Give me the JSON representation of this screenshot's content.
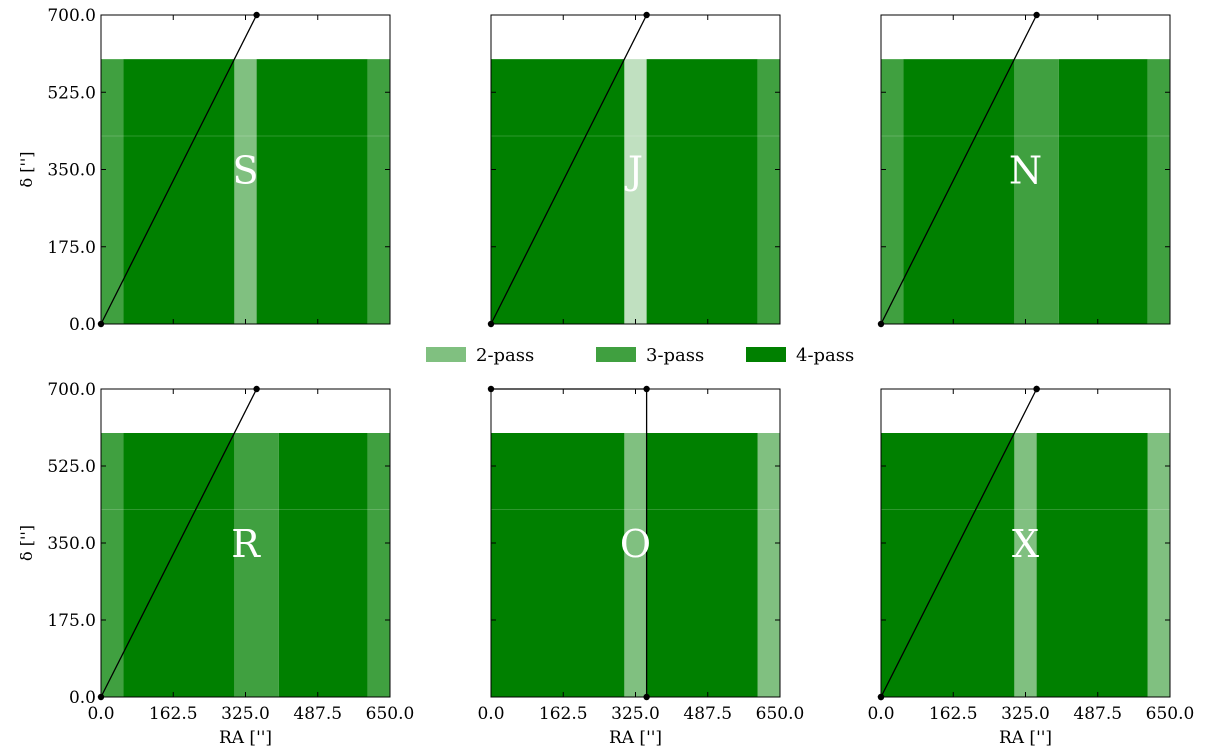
{
  "colors": {
    "pass2": "#80c080",
    "pass3": "#40a040",
    "pass4": "#008000",
    "pass1": "#c0e0c0",
    "axis": "#000000",
    "label": "#ffffff"
  },
  "legend": {
    "placement": "top-center",
    "items": [
      {
        "label": "2-pass",
        "color": "#80c080"
      },
      {
        "label": "3-pass",
        "color": "#40a040"
      },
      {
        "label": "4-pass",
        "color": "#008000"
      }
    ]
  },
  "chart_data": [
    {
      "type": "area",
      "panel_label": "S",
      "xlabel": "",
      "ylabel": "δ ['']",
      "xlim": [
        0,
        650
      ],
      "ylim": [
        0,
        700
      ],
      "xticks": [
        "0.0",
        "162.5",
        "325.0",
        "487.5",
        "650.0"
      ],
      "yticks": [
        "0.0",
        "175.0",
        "350.0",
        "525.0",
        "700.0"
      ],
      "show_xtick_labels": false,
      "show_ytick_labels": true,
      "coverage_top": 600,
      "strips": [
        {
          "x0": 0,
          "x1": 50,
          "passes": 3
        },
        {
          "x0": 50,
          "x1": 300,
          "passes": 4
        },
        {
          "x0": 300,
          "x1": 350,
          "passes": 2
        },
        {
          "x0": 350,
          "x1": 600,
          "passes": 4
        },
        {
          "x0": 600,
          "x1": 650,
          "passes": 3
        }
      ],
      "path": [
        [
          0,
          0
        ],
        [
          350,
          700
        ]
      ]
    },
    {
      "type": "area",
      "panel_label": "J",
      "xlabel": "",
      "ylabel": "",
      "xlim": [
        0,
        650
      ],
      "ylim": [
        0,
        700
      ],
      "xticks": [
        "0.0",
        "162.5",
        "325.0",
        "487.5",
        "650.0"
      ],
      "yticks": [
        "0.0",
        "175.0",
        "350.0",
        "525.0",
        "700.0"
      ],
      "show_xtick_labels": false,
      "show_ytick_labels": false,
      "coverage_top": 600,
      "strips": [
        {
          "x0": 0,
          "x1": 300,
          "passes": 4
        },
        {
          "x0": 300,
          "x1": 350,
          "passes": 1
        },
        {
          "x0": 350,
          "x1": 600,
          "passes": 4
        },
        {
          "x0": 600,
          "x1": 650,
          "passes": 3
        }
      ],
      "path": [
        [
          0,
          0
        ],
        [
          350,
          700
        ]
      ]
    },
    {
      "type": "area",
      "panel_label": "N",
      "xlabel": "",
      "ylabel": "",
      "xlim": [
        0,
        650
      ],
      "ylim": [
        0,
        700
      ],
      "xticks": [
        "0.0",
        "162.5",
        "325.0",
        "487.5",
        "650.0"
      ],
      "yticks": [
        "0.0",
        "175.0",
        "350.0",
        "525.0",
        "700.0"
      ],
      "show_xtick_labels": false,
      "show_ytick_labels": false,
      "coverage_top": 600,
      "strips": [
        {
          "x0": 0,
          "x1": 50,
          "passes": 3
        },
        {
          "x0": 50,
          "x1": 300,
          "passes": 4
        },
        {
          "x0": 300,
          "x1": 400,
          "passes": 3
        },
        {
          "x0": 400,
          "x1": 600,
          "passes": 4
        },
        {
          "x0": 600,
          "x1": 650,
          "passes": 3
        }
      ],
      "path": [
        [
          0,
          0
        ],
        [
          350,
          700
        ]
      ]
    },
    {
      "type": "area",
      "panel_label": "R",
      "xlabel": "RA ['']",
      "ylabel": "δ ['']",
      "xlim": [
        0,
        650
      ],
      "ylim": [
        0,
        700
      ],
      "xticks": [
        "0.0",
        "162.5",
        "325.0",
        "487.5",
        "650.0"
      ],
      "yticks": [
        "0.0",
        "175.0",
        "350.0",
        "525.0",
        "700.0"
      ],
      "show_xtick_labels": true,
      "show_ytick_labels": true,
      "coverage_top": 600,
      "strips": [
        {
          "x0": 0,
          "x1": 50,
          "passes": 3
        },
        {
          "x0": 50,
          "x1": 300,
          "passes": 4
        },
        {
          "x0": 300,
          "x1": 400,
          "passes": 3
        },
        {
          "x0": 400,
          "x1": 600,
          "passes": 4
        },
        {
          "x0": 600,
          "x1": 650,
          "passes": 3
        }
      ],
      "path": [
        [
          0,
          0
        ],
        [
          350,
          700
        ]
      ]
    },
    {
      "type": "area",
      "panel_label": "O",
      "xlabel": "RA ['']",
      "ylabel": "",
      "xlim": [
        0,
        650
      ],
      "ylim": [
        0,
        700
      ],
      "xticks": [
        "0.0",
        "162.5",
        "325.0",
        "487.5",
        "650.0"
      ],
      "yticks": [
        "0.0",
        "175.0",
        "350.0",
        "525.0",
        "700.0"
      ],
      "show_xtick_labels": true,
      "show_ytick_labels": false,
      "coverage_top": 600,
      "strips": [
        {
          "x0": 0,
          "x1": 300,
          "passes": 4
        },
        {
          "x0": 300,
          "x1": 350,
          "passes": 2
        },
        {
          "x0": 350,
          "x1": 600,
          "passes": 4
        },
        {
          "x0": 600,
          "x1": 650,
          "passes": 2
        }
      ],
      "path": [
        [
          0,
          700
        ],
        [
          350,
          700
        ],
        [
          350,
          0
        ]
      ]
    },
    {
      "type": "area",
      "panel_label": "X",
      "xlabel": "RA ['']",
      "ylabel": "",
      "xlim": [
        0,
        650
      ],
      "ylim": [
        0,
        700
      ],
      "xticks": [
        "0.0",
        "162.5",
        "325.0",
        "487.5",
        "650.0"
      ],
      "yticks": [
        "0.0",
        "175.0",
        "350.0",
        "525.0",
        "700.0"
      ],
      "show_xtick_labels": true,
      "show_ytick_labels": false,
      "coverage_top": 600,
      "strips": [
        {
          "x0": 0,
          "x1": 300,
          "passes": 4
        },
        {
          "x0": 300,
          "x1": 350,
          "passes": 2
        },
        {
          "x0": 350,
          "x1": 600,
          "passes": 4
        },
        {
          "x0": 600,
          "x1": 650,
          "passes": 2
        }
      ],
      "path": [
        [
          0,
          0
        ],
        [
          350,
          700
        ],
        [
          0,
          0
        ],
        [
          350,
          700
        ]
      ]
    }
  ]
}
